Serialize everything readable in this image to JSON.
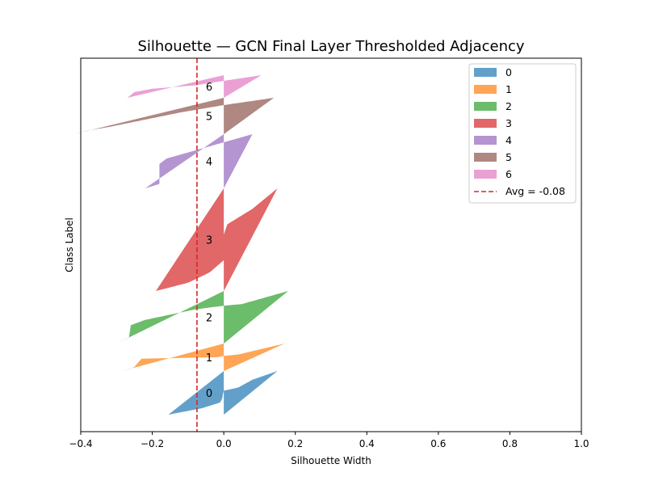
{
  "chart_data": {
    "type": "silhouette",
    "title": "Silhouette — GCN Final Layer Thresholded Adjacency",
    "xlabel": "Silhouette Width",
    "ylabel": "Class Label",
    "xlim": [
      -0.4,
      1.0
    ],
    "xticks": [
      "−0.4",
      "−0.2",
      "0.0",
      "0.2",
      "0.4",
      "0.6",
      "0.8",
      "1.0"
    ],
    "xtick_values": [
      -0.4,
      -0.2,
      0.0,
      0.2,
      0.4,
      0.6,
      0.8,
      1.0
    ],
    "grid": false,
    "legend_position": "top-right",
    "average": {
      "label": "Avg = -0.08",
      "value": -0.075,
      "color": "#d62728"
    },
    "clusters": [
      {
        "name": "0",
        "label": "0",
        "color": "#1f77b4",
        "profile": [
          [
            0,
            0.15
          ],
          [
            0.2,
            0.08
          ],
          [
            0.38,
            0.04
          ],
          [
            0.45,
            0.0
          ],
          [
            0.55,
            -0.003
          ],
          [
            0.62,
            -0.004
          ],
          [
            0.72,
            -0.01
          ],
          [
            0.85,
            -0.06
          ],
          [
            1.0,
            -0.155
          ]
        ]
      },
      {
        "name": "1",
        "label": "1",
        "color": "#ff7f0e",
        "profile": [
          [
            0,
            0.17
          ],
          [
            0.4,
            0.04
          ],
          [
            0.45,
            0.0
          ],
          [
            0.5,
            -0.02
          ],
          [
            0.55,
            -0.23
          ],
          [
            0.85,
            -0.25
          ],
          [
            0.92,
            -0.26
          ],
          [
            1.0,
            -0.285
          ]
        ]
      },
      {
        "name": "2",
        "label": "2",
        "color": "#2ca02c",
        "profile": [
          [
            0,
            0.18
          ],
          [
            0.25,
            0.05
          ],
          [
            0.28,
            0.0
          ],
          [
            0.35,
            -0.08
          ],
          [
            0.55,
            -0.22
          ],
          [
            0.65,
            -0.26
          ],
          [
            0.88,
            -0.265
          ],
          [
            1.0,
            -0.3
          ]
        ]
      },
      {
        "name": "3",
        "label": "3",
        "color": "#d62728",
        "profile": [
          [
            0,
            0.15
          ],
          [
            0.2,
            0.08
          ],
          [
            0.35,
            0.01
          ],
          [
            0.45,
            0.0
          ],
          [
            0.7,
            0.0
          ],
          [
            0.82,
            -0.04
          ],
          [
            0.92,
            -0.1
          ],
          [
            1.0,
            -0.19
          ]
        ]
      },
      {
        "name": "4",
        "label": "4",
        "color": "#9467bd",
        "profile": [
          [
            0,
            0.08
          ],
          [
            0.15,
            0.0
          ],
          [
            0.3,
            -0.08
          ],
          [
            0.45,
            -0.16
          ],
          [
            0.55,
            -0.18
          ],
          [
            0.92,
            -0.18
          ],
          [
            1.0,
            -0.22
          ]
        ]
      },
      {
        "name": "5",
        "label": "5",
        "color": "#8c564b",
        "profile": [
          [
            0,
            0.14
          ],
          [
            0.2,
            0.0
          ],
          [
            0.4,
            -0.12
          ],
          [
            0.6,
            -0.22
          ],
          [
            0.8,
            -0.32
          ],
          [
            0.9,
            -0.38
          ],
          [
            1.0,
            -0.42
          ]
        ]
      },
      {
        "name": "6",
        "label": "6",
        "color": "#e377c2",
        "profile": [
          [
            0,
            0.105
          ],
          [
            0.25,
            0.0
          ],
          [
            0.45,
            -0.08
          ],
          [
            0.6,
            -0.2
          ],
          [
            0.75,
            -0.25
          ],
          [
            1.0,
            -0.27
          ]
        ]
      }
    ]
  }
}
